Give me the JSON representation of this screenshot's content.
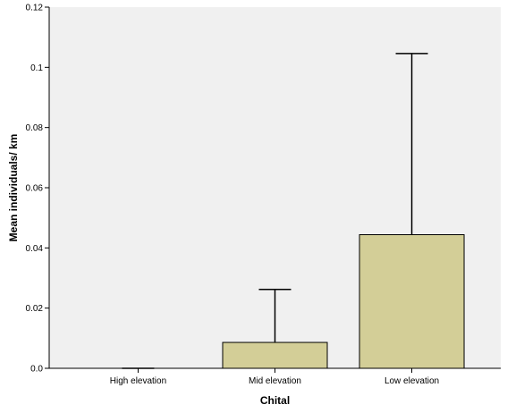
{
  "chart_data": {
    "type": "bar",
    "title": "",
    "xlabel": "Chital",
    "ylabel": "Mean individuals/ km",
    "categories": [
      "High elevation",
      "Mid elevation",
      "Low elevation"
    ],
    "values": [
      0.0,
      0.0086,
      0.0444
    ],
    "error_upper": [
      0.0,
      0.0262,
      0.1046
    ],
    "ylim": [
      0,
      0.12
    ],
    "yticks": [
      0.0,
      0.02,
      0.04,
      0.06,
      0.08,
      0.1,
      0.12
    ],
    "ytick_labels": [
      "0.0",
      "0.02",
      "0.04",
      "0.06",
      "0.08",
      "0.1",
      "0.12"
    ],
    "grid": false,
    "legend": "none",
    "colors": {
      "plot_background": "#f0f0f0",
      "bar_fill": "#d3ce97",
      "bar_stroke": "#000000",
      "error_bar": "#000000",
      "axis": "#000000"
    }
  }
}
